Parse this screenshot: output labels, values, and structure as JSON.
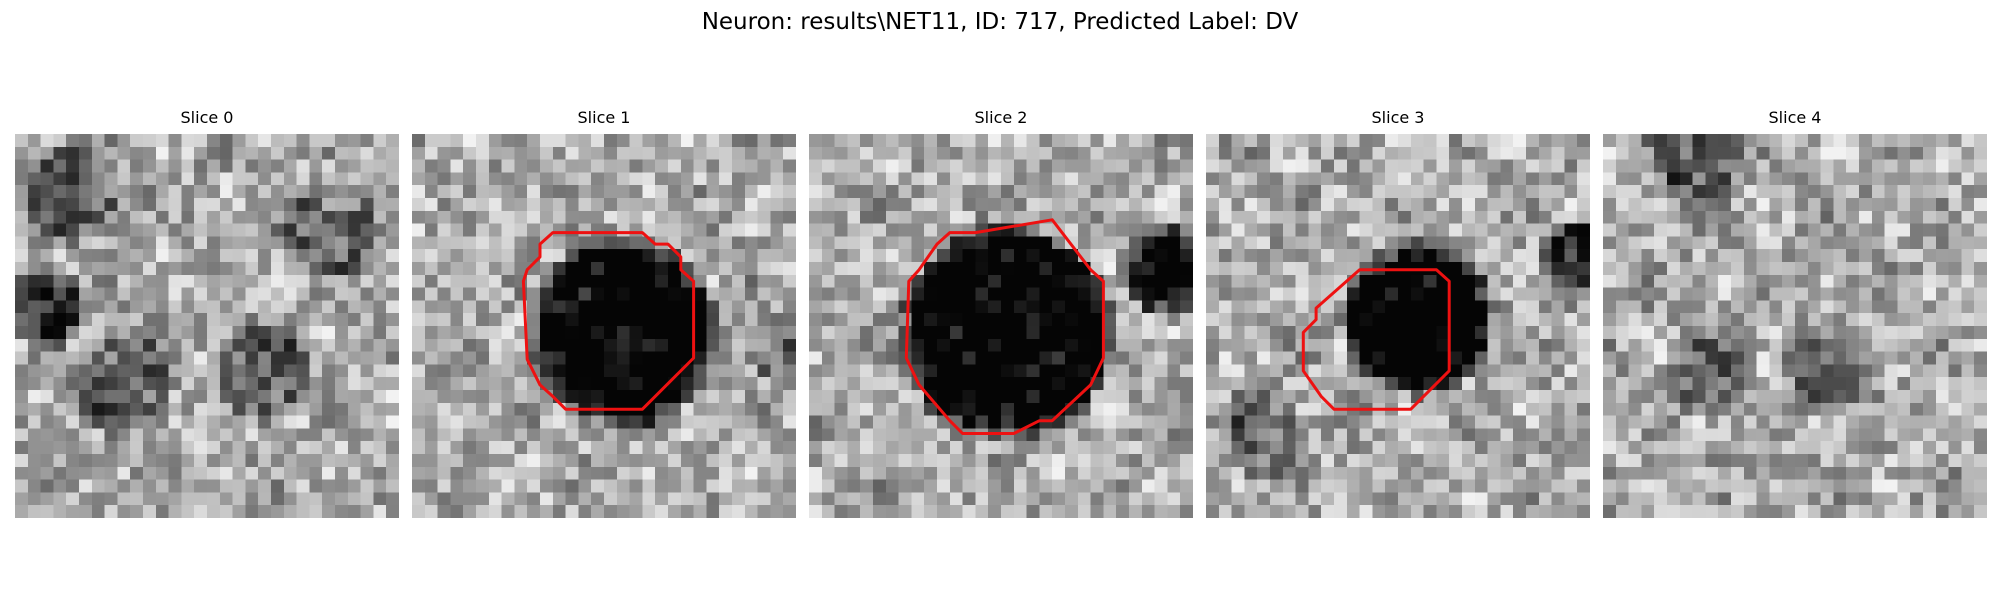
{
  "title": "Neuron: results\\NET11, ID: 717, Predicted Label: DV",
  "panels": [
    {
      "title": "Slice 0",
      "has_contour": false
    },
    {
      "title": "Slice 1",
      "has_contour": true
    },
    {
      "title": "Slice 2",
      "has_contour": true
    },
    {
      "title": "Slice 3",
      "has_contour": true
    },
    {
      "title": "Slice 4",
      "has_contour": false
    }
  ],
  "colors": {
    "contour": "#ee1111",
    "background": "#ffffff"
  },
  "image": {
    "colormap": "grayscale"
  }
}
